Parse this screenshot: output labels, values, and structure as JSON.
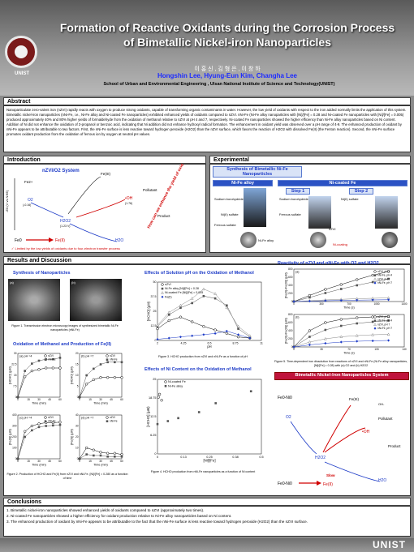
{
  "header": {
    "title_line1": "Formation of Reactive Oxidants during the Corrosion Process",
    "title_line2": "of Bimetallic Nickel-iron Nanoparticles",
    "authors_kr": "이 홍 신 , 김 형 은 , 이 창 하",
    "authors_en": "Hongshin Lee, Hyung-Eun Kim, Changha Lee",
    "affiliation": "School of Urban and Environmental Engineering , Ulsan National Institute of Science and Technology(UNIST)",
    "logo_text": "UNIST"
  },
  "abstract": {
    "heading": "Abstract",
    "text": "Nanoparticulate zero-valent iron (nZVI) rapidly reacts with oxygen to produce strong oxidants, capable of transforming organic contaminants in water. However, the low yield of oxidants with respect to the iron added normally limits the application of this system. Bimetallic nickel-iron nanoparticles (nNi-Fe, i.e., Ni-Fe alloy and Ni-coated Fe nanoparticles) exhibited enhanced yields of oxidants compared to nZVI. nNi-Fe (Ni-Fe alloy nanoparticles with [Ni]/[Fe] = 0.28 and Ni-coated Fe nanoparticles with [Ni]/[Fe] = 0.005) produced approximately 40% and 80% higher yields of formaldehyde from the oxidation of methanol relative to nZVI at pH 4 and 7, respectively. Ni-coated Fe nanoparticles showed the higher efficiency than Ni-Fe alloy nanoparticles based on Ni content. Addition of Ni did not enhance the oxidation of 2-propanol or benzoic acid, indicating that Ni addition did not enhance hydroxyl radical formation. The enhancement in oxidant yield was observed over a pH range of 4-9. The enhanced production of oxidant by nNi-Fe appears to be attributable to two factors. First, the nNi-Fe surface is less reactive toward hydrogen peroxide (H2O2) than the nZVI surface, which favors the reaction of H2O2 with dissolved Fe(II) (the Fenton reaction). Second, the nNi-Fe surface promotes oxidant production from the oxidation of ferrous ion by oxygen at neutral pH values."
  },
  "introduction": {
    "heading": "Introduction",
    "system_title": "nZVI/O2 System",
    "diagram_labels": [
      "Fe0",
      "Fe(II)",
      "Fe(III)",
      "O2",
      "H2O2",
      "•OH",
      "Pollutant",
      "Product",
      "H2O",
      "2e-",
      "Fe2+",
      "OH-"
    ],
    "potentials": [
      "(-0.44 V)",
      "(-0.16)",
      "(1.76)",
      "(2.31)",
      "(1.23 V)"
    ],
    "fe_transition": "Fe(II)",
    "fe0": "Fe0",
    "limit_note": "✓ Limited by the low yields of oxidants due to four-electron transfer process",
    "slogan": "How can we enhance the yield of oxidants from nZVI ?"
  },
  "experimental": {
    "heading": "Experimental",
    "synth_title": "Synthesis of Bimetallic Ni-Fe Nanoparticles",
    "alloy_label": "Ni-Fe alloy",
    "coated_label": "Ni-coated Fe",
    "step1": "Step 1",
    "step2": "Step 2",
    "reagents": [
      "Sodium borohydride",
      "Ni(II) sulfate",
      "Ferrous sulfate",
      "Sodium borohydride",
      "Ferrous sulfate",
      "Ni(II) sulfate"
    ],
    "product_alloy": "Ni-Fe alloy",
    "product_nzvi": "nZVI",
    "product_coating": "Ni-coating"
  },
  "results": {
    "heading": "Results and Discussion",
    "synthesis_heading": "Synthesis of Nanoparticles",
    "tem_labels": [
      "(a)",
      "(b)"
    ],
    "fig1_caption": "Figure 1. Transmission electron microscopy images of synthesized bimetallic Ni-Fe nanoparticles (nNi-Fe)",
    "oxidation_heading": "Oxidation of Methanol and Production of Fe(II)",
    "fig2_caption": "Figure 2. Production of HCHO and Fe(II) from nZVI and nNi-Fe. [Ni]/[Fe] = 0.280 as a function of time",
    "ph_heading": "Effects of Solution pH on the Oxidation of Methanol",
    "fig3_caption": "Figure 3. HCHO production from nZVI and nNi-Fe as a function of pH",
    "ni_heading": "Effects of Ni Content on the Oxidation of Methanol",
    "fig4_caption": "Figure 4. HCHO production from nNi-Fe nanoparticles as a function of Ni content",
    "reactivity_heading": "Reactivity of nZVI and nNi-Fe with O2 and H2O2",
    "fig5_caption": "Figure 5. Time-dependent iron dissolution from reactions of nZVI and nNi-Fe (Ni-Fe alloy nanoparticles, [Ni]/[Fe] = 0.28) with (a) O2 and (b) H2O2",
    "system_heading": "Bimetallic Nickel-Iron Nanoparticles System",
    "system_labels": [
      "Fe0-Ni0",
      "O2",
      "H2O2",
      "•OH",
      "Pollutant",
      "Product",
      "H2O",
      "Fe(III)",
      "Slow",
      "Fe2+",
      "OH-",
      "Fe(II)"
    ]
  },
  "chart_data": [
    {
      "type": "line",
      "title": "(a) pH =4",
      "xlabel": "Time (min)",
      "ylabel": "[HCHO] (µM)",
      "x": [
        0,
        10,
        20,
        30,
        40,
        50,
        60
      ],
      "xlim": [
        0,
        60
      ],
      "ylim": [
        0,
        30
      ],
      "series": [
        {
          "name": "nZVI",
          "values": [
            0,
            14,
            18,
            19,
            20,
            20,
            20
          ]
        },
        {
          "name": "nNi-Fe",
          "values": [
            0,
            18,
            23,
            25,
            26,
            26,
            27
          ]
        }
      ]
    },
    {
      "type": "line",
      "title": "(b) pH =7",
      "xlabel": "Time (min)",
      "ylabel": "[HCHO] (µM)",
      "x": [
        0,
        10,
        20,
        30,
        40,
        50,
        60
      ],
      "xlim": [
        0,
        60
      ],
      "ylim": [
        0,
        20
      ],
      "series": [
        {
          "name": "nZVI",
          "values": [
            0,
            6,
            8,
            9,
            9,
            9,
            9
          ]
        },
        {
          "name": "nNi-Fe",
          "values": [
            0,
            10,
            13,
            15,
            16,
            16,
            16
          ]
        }
      ]
    },
    {
      "type": "line",
      "title": "(c) pH =4",
      "xlabel": "Time (min)",
      "ylabel": "[Fe(II)] (µM)",
      "x": [
        0,
        10,
        20,
        30,
        40,
        50,
        60
      ],
      "xlim": [
        0,
        60
      ],
      "ylim": [
        0,
        400
      ],
      "series": [
        {
          "name": "nZVI",
          "values": [
            0,
            250,
            300,
            320,
            330,
            330,
            335
          ]
        },
        {
          "name": "nNi-Fe",
          "values": [
            0,
            200,
            260,
            290,
            300,
            305,
            310
          ]
        }
      ]
    },
    {
      "type": "line",
      "title": "(d) pH =7",
      "xlabel": "Time (min)",
      "ylabel": "[Fe(II)] (µM)",
      "x": [
        0,
        10,
        20,
        30,
        40,
        50,
        60
      ],
      "xlim": [
        0,
        60
      ],
      "ylim": [
        0,
        40
      ],
      "series": [
        {
          "name": "nZVI",
          "values": [
            0,
            10,
            8,
            6,
            5,
            5,
            4
          ]
        },
        {
          "name": "nNi-Fe",
          "values": [
            0,
            4,
            3,
            3,
            2,
            2,
            2
          ]
        }
      ]
    },
    {
      "type": "line",
      "title": "",
      "xlabel": "pH",
      "ylabel": "[HCHO] (µM)",
      "x": [
        2,
        3,
        4,
        5,
        6,
        7,
        8,
        9,
        10
      ],
      "xlim": [
        2,
        11
      ],
      "ylim": [
        0,
        50
      ],
      "series": [
        {
          "name": "nZVI",
          "values": [
            10,
            17,
            20,
            16,
            12,
            9,
            6,
            3,
            2
          ]
        },
        {
          "name": "Ni-Fe alloy [Ni]/[Fe] = 0.28",
          "values": [
            12,
            22,
            28,
            32,
            38,
            36,
            30,
            10,
            3
          ]
        },
        {
          "name": "Ni-coated Fe [Ni]/[Fe] = 0.005",
          "values": [
            13,
            24,
            30,
            36,
            44,
            40,
            28,
            12,
            4
          ]
        },
        {
          "name": "Fe(II)",
          "values": [
            1,
            2,
            3,
            4,
            5,
            6,
            8,
            5,
            2
          ]
        }
      ]
    },
    {
      "type": "scatter",
      "title": "",
      "xlabel": "[Ni]/[Fe]",
      "ylabel": "[HCHO] (µM)",
      "xlim": [
        0,
        0.5
      ],
      "ylim": [
        0,
        25
      ],
      "series": [
        {
          "name": "Ni-coated Fe",
          "x": [
            0.005,
            0.01,
            0.02
          ],
          "values": [
            19,
            20,
            18
          ]
        },
        {
          "name": "Ni-Fe alloy",
          "x": [
            0.0,
            0.05,
            0.1,
            0.2,
            0.28,
            0.45
          ],
          "values": [
            10,
            11,
            12,
            14,
            17,
            21
          ]
        }
      ]
    },
    {
      "type": "line",
      "title": "(a)",
      "xlabel": "Time (s)",
      "ylabel": "[Fe(II)+Fe(III)] (µM)",
      "x": [
        0,
        200,
        400,
        600,
        800,
        1000,
        1200
      ],
      "xlim": [
        0,
        1400
      ],
      "ylim": [
        0,
        800
      ],
      "series": [
        {
          "name": "nZVI, pH 4",
          "values": [
            0,
            150,
            300,
            420,
            540,
            650,
            740
          ]
        },
        {
          "name": "nNi-Fe, pH 4",
          "values": [
            0,
            100,
            210,
            310,
            400,
            480,
            560
          ]
        },
        {
          "name": "nZVI, pH 7",
          "values": [
            0,
            20,
            40,
            55,
            70,
            80,
            90
          ]
        },
        {
          "name": "nNi-Fe, pH 7",
          "values": [
            0,
            10,
            20,
            28,
            35,
            40,
            45
          ]
        }
      ]
    },
    {
      "type": "line",
      "title": "(b)",
      "xlabel": "Time (s)",
      "ylabel": "[Fe(II)+Fe(III)] (µM)",
      "x": [
        0,
        20,
        40,
        60,
        80,
        100,
        120
      ],
      "xlim": [
        0,
        140
      ],
      "ylim": [
        0,
        800
      ],
      "series": [
        {
          "name": "nZVI, pH 4",
          "values": [
            0,
            400,
            600,
            680,
            720,
            740,
            750
          ]
        },
        {
          "name": "nNi-Fe, pH 4",
          "values": [
            0,
            250,
            420,
            520,
            580,
            620,
            650
          ]
        },
        {
          "name": "nZVI, pH 7",
          "values": [
            0,
            120,
            200,
            250,
            280,
            300,
            310
          ]
        },
        {
          "name": "nNi-Fe, pH 7",
          "values": [
            0,
            50,
            90,
            120,
            140,
            150,
            160
          ]
        }
      ]
    }
  ],
  "conclusions": {
    "heading": "Conclusions",
    "items": [
      "1.  Bimetallic nickel-iron nanoparticles showed enhanced yields of oxidants compared to nZVI (approximately two times).",
      "2.  Ni-coated Fe nanoparticles showed a higher efficiency for oxidant production relative to Ni-Fe alloy nanoparticles based on Ni content.",
      "3.  The enhanced production of oxidant by nNi-Fe appears to be attributable to the fact that the nNi-Fe surface is less reactive toward hydrogen peroxide (H2O2) than the nZVI surface."
    ],
    "footer_logo": "UNIST"
  },
  "colors": {
    "accent": "#1d3bc7",
    "red": "#d00000",
    "panel": "#ffffff"
  }
}
